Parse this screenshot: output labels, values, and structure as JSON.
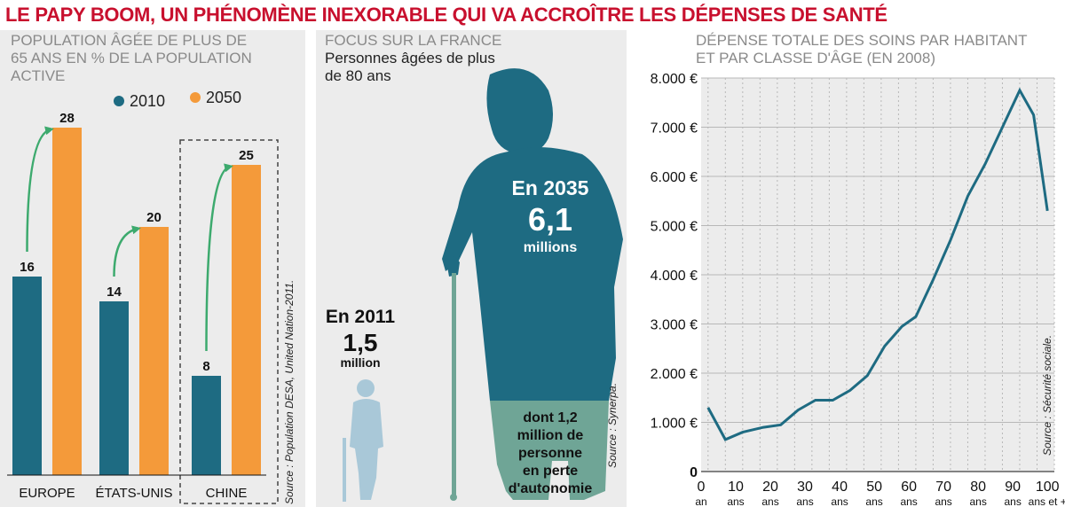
{
  "headline": "LE PAPY BOOM, UN PHÉNOMÈNE INEXORABLE QUI VA ACCROÎTRE LES DÉPENSES DE SANTÉ",
  "colors": {
    "headline": "#c8102e",
    "teal": "#1e6b82",
    "orange": "#f49a3a",
    "arrow_green": "#3daa6e",
    "figure_light": "#a9c8d8",
    "figure_highlight": "#6fa596",
    "line": "#1e6b82"
  },
  "panel1": {
    "title_lines": [
      "POPULATION ÂGÉE DE PLUS DE",
      "65 ANS EN % DE LA POPULATION",
      "ACTIVE"
    ],
    "legend": [
      {
        "label": "2010",
        "color": "#1e6b82"
      },
      {
        "label": "2050",
        "color": "#f49a3a"
      }
    ],
    "source": "Source : Population DESA, United Nation-2011."
  },
  "panel2": {
    "title": "FOCUS SUR LA FRANCE",
    "subtitle_lines": [
      "Personnes âgées de plus",
      "de 80 ans"
    ],
    "y2011": {
      "label": "En 2011",
      "value": "1,5",
      "unit": "million"
    },
    "y2035": {
      "label": "En 2035",
      "value": "6,1",
      "unit": "millions"
    },
    "dependency_lines": [
      "dont 1,2",
      "million de",
      "personne",
      "en perte",
      "d'autonomie"
    ],
    "source": "Source : Synerpa."
  },
  "panel3": {
    "title_lines": [
      "DÉPENSE TOTALE DES SOINS PAR HABITANT",
      "ET PAR CLASSE D'ÂGE (EN 2008)"
    ],
    "source": "Source : Sécurité sociale."
  },
  "chart_data": [
    {
      "type": "bar",
      "title": "POPULATION ÂGÉE DE PLUS DE 65 ANS EN % DE LA POPULATION ACTIVE",
      "categories": [
        "EUROPE",
        "ÉTATS-UNIS",
        "CHINE"
      ],
      "series": [
        {
          "name": "2010",
          "values": [
            16,
            14,
            8
          ]
        },
        {
          "name": "2050",
          "values": [
            28,
            20,
            25
          ]
        }
      ],
      "ylim": [
        0,
        30
      ],
      "highlight_category": "CHINE"
    },
    {
      "type": "line",
      "title": "DÉPENSE TOTALE DES SOINS PAR HABITANT ET PAR CLASSE D'ÂGE (EN 2008)",
      "x": [
        2,
        7,
        12,
        18,
        23,
        28,
        33,
        38,
        43,
        48,
        53,
        58,
        62,
        67,
        72,
        77,
        82,
        87,
        92,
        96,
        100
      ],
      "y": [
        1300,
        650,
        800,
        900,
        950,
        1250,
        1450,
        1450,
        1650,
        1950,
        2550,
        2950,
        3150,
        3900,
        4700,
        5600,
        6250,
        7000,
        7750,
        7250,
        5300
      ],
      "xticks": [
        0,
        10,
        20,
        30,
        40,
        50,
        60,
        70,
        80,
        90,
        100
      ],
      "xtick_labels": [
        "an",
        "ans",
        "ans",
        "ans",
        "ans",
        "ans",
        "ans",
        "ans",
        "ans",
        "ans",
        "ans et +"
      ],
      "yticks": [
        0,
        1000,
        2000,
        3000,
        4000,
        5000,
        6000,
        7000,
        8000
      ],
      "ytick_labels": [
        "0",
        "1.000 €",
        "2.000 €",
        "3.000 €",
        "4.000 €",
        "5.000 €",
        "6.000 €",
        "7.000 €",
        "8.000 €"
      ],
      "xlim": [
        0,
        102
      ],
      "ylim": [
        0,
        8000
      ],
      "grid": true
    }
  ]
}
